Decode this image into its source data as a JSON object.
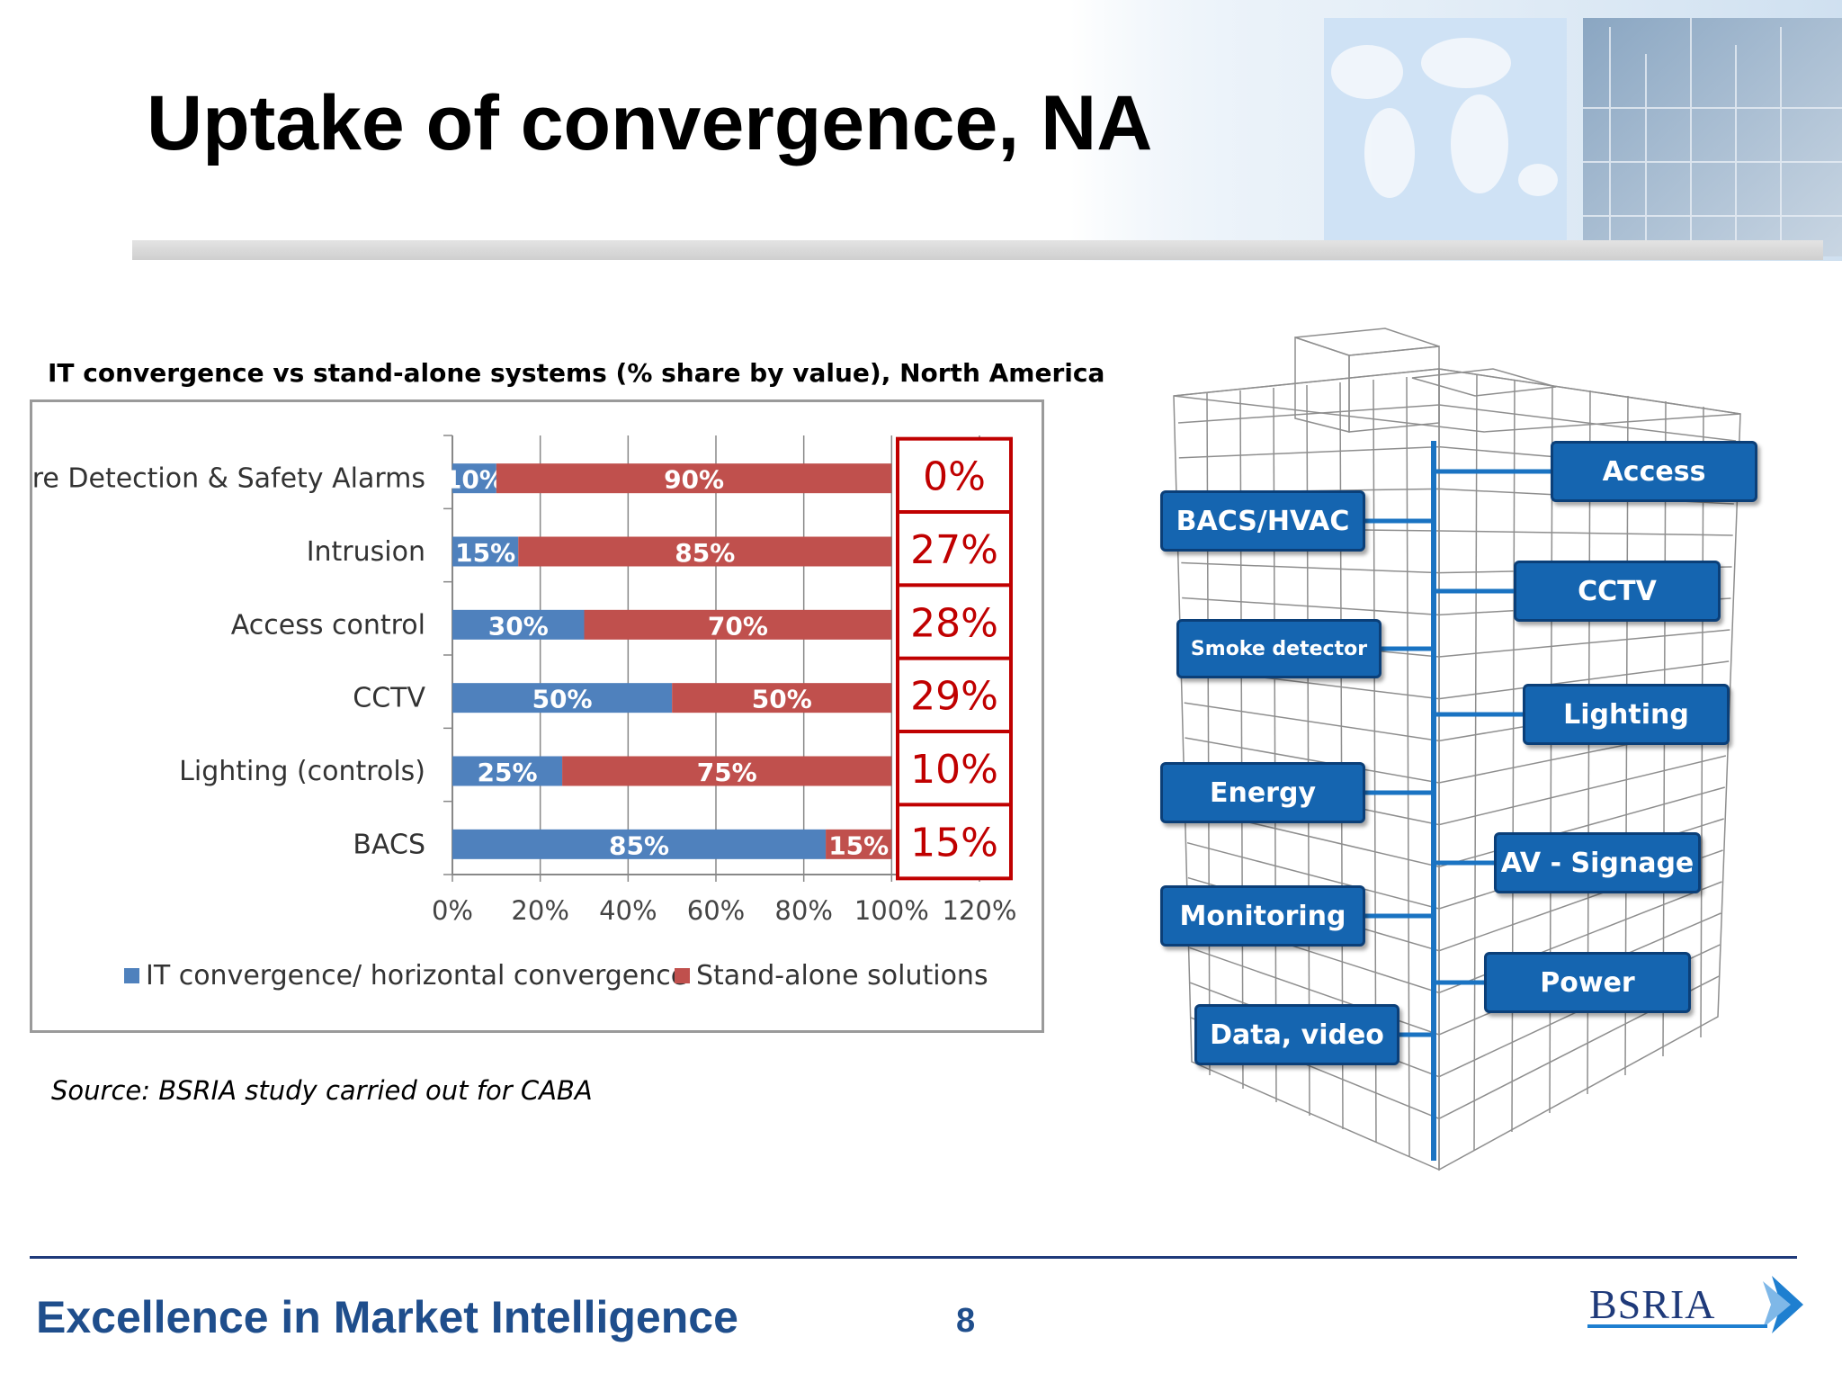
{
  "slide": {
    "title": "Uptake of convergence, NA",
    "source": "Source: BSRIA study carried out for CABA",
    "footer_slogan": "Excellence in Market Intelligence",
    "page_number": "8",
    "logo_text": "BSRIA"
  },
  "chart_data": {
    "type": "bar",
    "stacked": true,
    "orientation": "horizontal",
    "title": "IT convergence vs stand-alone systems (% share by value), North America",
    "categories": [
      "Fire Detection & Safety Alarms",
      "Intrusion",
      "Access control",
      "CCTV",
      "Lighting (controls)",
      "BACS"
    ],
    "series": [
      {
        "name": "IT convergence/ horizontal convergence",
        "color": "#4f81bd",
        "values": [
          10,
          15,
          30,
          50,
          25,
          85
        ],
        "labels": [
          "10%",
          "15%",
          "30%",
          "50%",
          "25%",
          "85%"
        ]
      },
      {
        "name": "Stand-alone solutions",
        "color": "#c0504d",
        "values": [
          90,
          85,
          70,
          50,
          75,
          15
        ],
        "labels": [
          "90%",
          "85%",
          "70%",
          "50%",
          "75%",
          "15%"
        ]
      }
    ],
    "x_ticks": [
      "0%",
      "20%",
      "40%",
      "60%",
      "80%",
      "100%",
      "120%"
    ],
    "xlim": [
      0,
      120
    ],
    "grid": true,
    "legend_position": "bottom",
    "callouts": [
      "0%",
      "27%",
      "28%",
      "29%",
      "10%",
      "15%"
    ],
    "callout_color": "#c00000"
  },
  "diagram": {
    "tags": [
      {
        "label": "Access"
      },
      {
        "label": "BACS/HVAC"
      },
      {
        "label": "CCTV"
      },
      {
        "label": "Smoke detector"
      },
      {
        "label": "Lighting"
      },
      {
        "label": "Energy"
      },
      {
        "label": "AV - Signage"
      },
      {
        "label": "Monitoring"
      },
      {
        "label": "Power"
      },
      {
        "label": "Data, video"
      }
    ]
  }
}
